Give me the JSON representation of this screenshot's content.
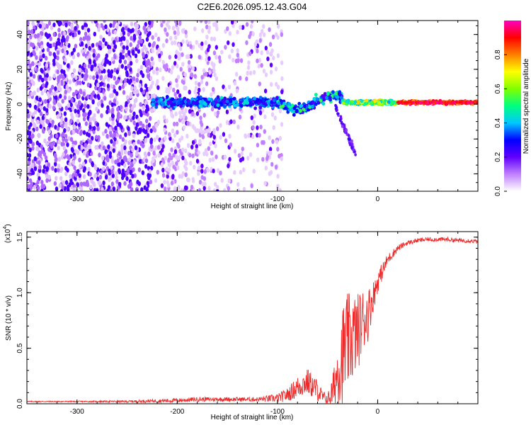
{
  "title": "C2E6.2026.095.12.43.G04",
  "colors": {
    "snr_line": "#ee2b2b",
    "frame": "#000000",
    "background": "#ffffff"
  },
  "chart_data": [
    {
      "type": "heatmap",
      "title": "C2E6.2026.095.12.43.G04",
      "xlabel": "Height of straight line (km)",
      "ylabel": "Frequency (Hz)",
      "xlim": [
        -350,
        100
      ],
      "ylim": [
        -50,
        48
      ],
      "xticks": [
        -300,
        -200,
        -100,
        0
      ],
      "yticks": [
        -40,
        -20,
        0,
        20,
        40
      ],
      "colorbar": {
        "label": "Normalized spectral amplitude",
        "range": [
          0.0,
          1.0
        ],
        "ticks": [
          0.0,
          0.2,
          0.4,
          0.6,
          0.8
        ],
        "colors": [
          "#ffffff",
          "#c080ff",
          "#6000ff",
          "#0000ff",
          "#00c8ff",
          "#00ff80",
          "#80ff00",
          "#ffff00",
          "#ff8000",
          "#ff0000",
          "#ff00c0"
        ]
      },
      "features": [
        {
          "name": "noise region",
          "x_range": [
            -350,
            -100
          ],
          "freq_range": [
            -50,
            48
          ],
          "amplitude": "low (0.05-0.2)"
        },
        {
          "name": "carrier line",
          "x_range": [
            -225,
            100
          ],
          "freq_center": 1,
          "amplitude": "0.2-1.0, increasing with height"
        },
        {
          "name": "descending branch",
          "x_range": [
            -40,
            -20
          ],
          "freq_range": [
            -30,
            -2
          ]
        }
      ]
    },
    {
      "type": "line",
      "xlabel": "Height of straight line (km)",
      "ylabel": "SNR (10 * v/v)",
      "yscale_label": "(x10",
      "yscale_exp": "4",
      "xlim": [
        -350,
        100
      ],
      "ylim": [
        0.0,
        1.55
      ],
      "xticks": [
        -300,
        -200,
        -100,
        0
      ],
      "yticks": [
        0.0,
        0.5,
        1.0,
        1.5
      ],
      "ytick_labels": [
        "0.0",
        "0.5",
        "1.0",
        "1.5"
      ],
      "series": [
        {
          "name": "SNR",
          "x": [
            -350,
            -300,
            -250,
            -200,
            -180,
            -150,
            -120,
            -100,
            -90,
            -80,
            -70,
            -60,
            -55,
            -50,
            -45,
            -40,
            -35,
            -30,
            -25,
            -20,
            -15,
            -10,
            -5,
            0,
            10,
            20,
            30,
            40,
            50,
            60,
            70,
            80,
            90,
            100
          ],
          "values": [
            0.02,
            0.02,
            0.02,
            0.03,
            0.04,
            0.04,
            0.04,
            0.05,
            0.08,
            0.15,
            0.2,
            0.12,
            0.06,
            0.04,
            0.1,
            0.3,
            0.45,
            0.55,
            0.6,
            0.65,
            0.75,
            0.8,
            0.95,
            1.1,
            1.3,
            1.4,
            1.45,
            1.47,
            1.48,
            1.48,
            1.48,
            1.47,
            1.47,
            1.46
          ],
          "spread": [
            0.005,
            0.005,
            0.01,
            0.02,
            0.02,
            0.02,
            0.02,
            0.04,
            0.06,
            0.1,
            0.12,
            0.1,
            0.06,
            0.05,
            0.15,
            0.3,
            0.45,
            0.45,
            0.4,
            0.35,
            0.3,
            0.25,
            0.15,
            0.1,
            0.05,
            0.03,
            0.02,
            0.02,
            0.02,
            0.02,
            0.02,
            0.02,
            0.02,
            0.02
          ]
        }
      ]
    }
  ]
}
